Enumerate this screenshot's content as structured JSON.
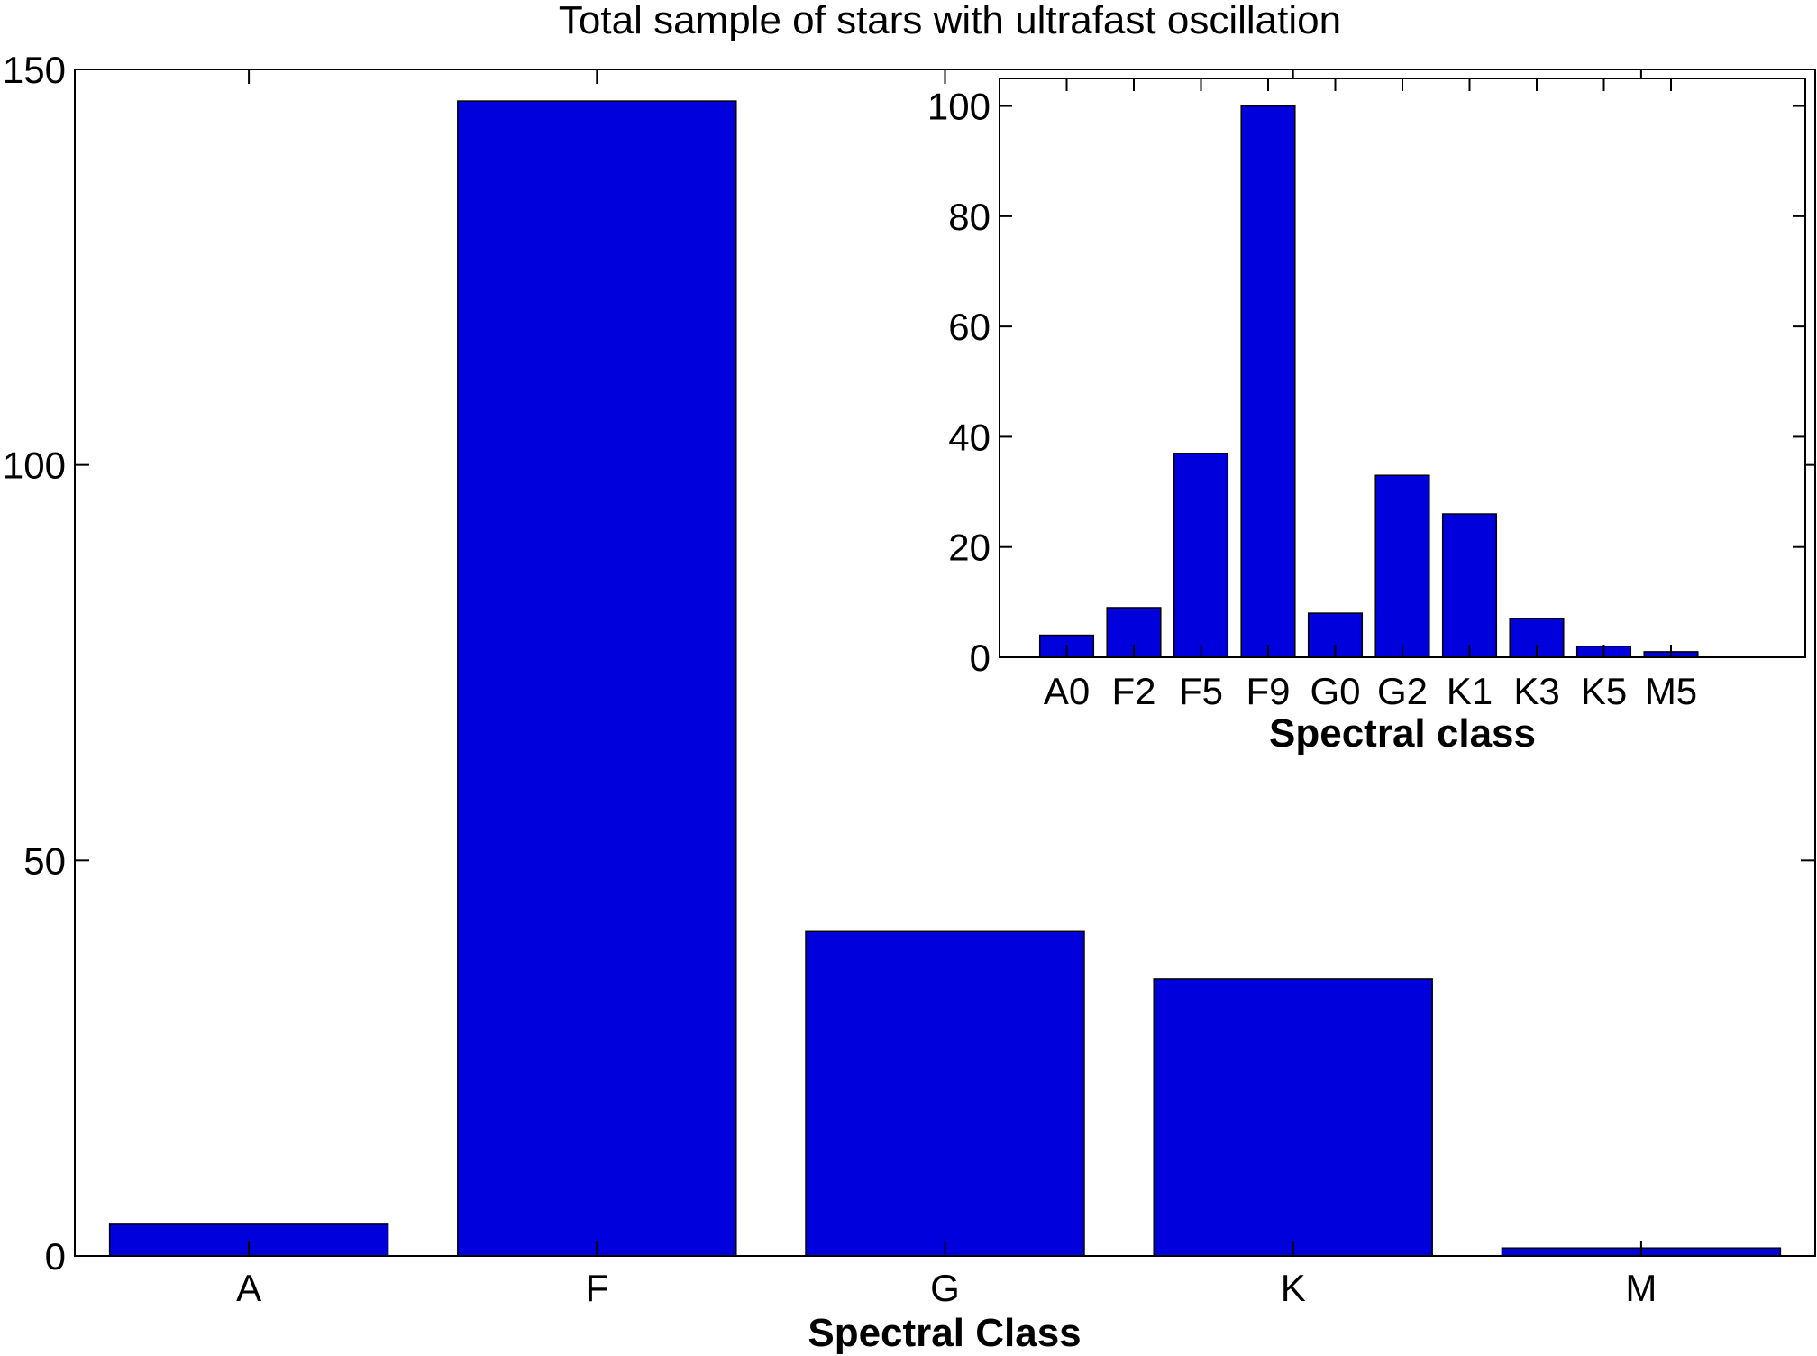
{
  "chart_data": [
    {
      "type": "bar",
      "title": "Total sample of stars with ultrafast oscillation",
      "xlabel": "Spectral Class",
      "ylabel": "",
      "categories": [
        "A",
        "F",
        "G",
        "K",
        "M"
      ],
      "values": [
        4,
        146,
        41,
        35,
        1
      ],
      "ylim": [
        0,
        150
      ],
      "yticks": [
        "0",
        "50",
        "100",
        "150"
      ],
      "bar_color": "#0000dd",
      "grid": false
    },
    {
      "type": "bar",
      "title": "",
      "xlabel": "Spectral class",
      "ylabel": "",
      "categories": [
        "A0",
        "F2",
        "F5",
        "F9",
        "G0",
        "G2",
        "K1",
        "K3",
        "K5",
        "M5"
      ],
      "values": [
        4,
        9,
        37,
        100,
        8,
        33,
        26,
        7,
        2,
        1
      ],
      "ylim": [
        0,
        105
      ],
      "yticks": [
        "0",
        "20",
        "40",
        "60",
        "80",
        "100"
      ],
      "bar_color": "#0000dd",
      "grid": false
    }
  ]
}
